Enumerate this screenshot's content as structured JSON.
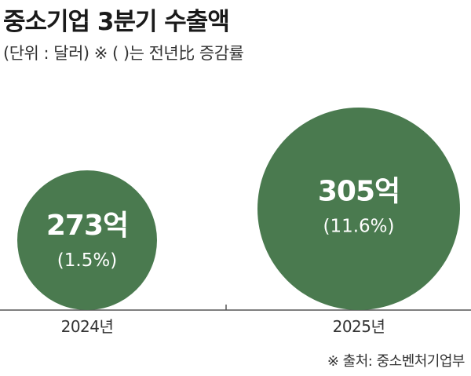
{
  "title": "중소기업 3분기 수출액",
  "subtitle": "(단위 : 달러)  ※ (  )는 전년比 증감률",
  "source": "※ 출처: 중소벤처기업부",
  "chart_data": {
    "type": "bubble",
    "title": "중소기업 3분기 수출액",
    "unit": "달러",
    "categories": [
      "2024년",
      "2025년"
    ],
    "values": [
      273,
      305
    ],
    "value_labels": [
      "273억",
      "305억"
    ],
    "change_labels": [
      "(1.5%)",
      "(11.6%)"
    ],
    "change_pct": [
      1.5,
      11.6
    ],
    "colors": {
      "bubble": "#4a7a4f",
      "bubble_text": "#ffffff",
      "axis": "#555555"
    }
  }
}
